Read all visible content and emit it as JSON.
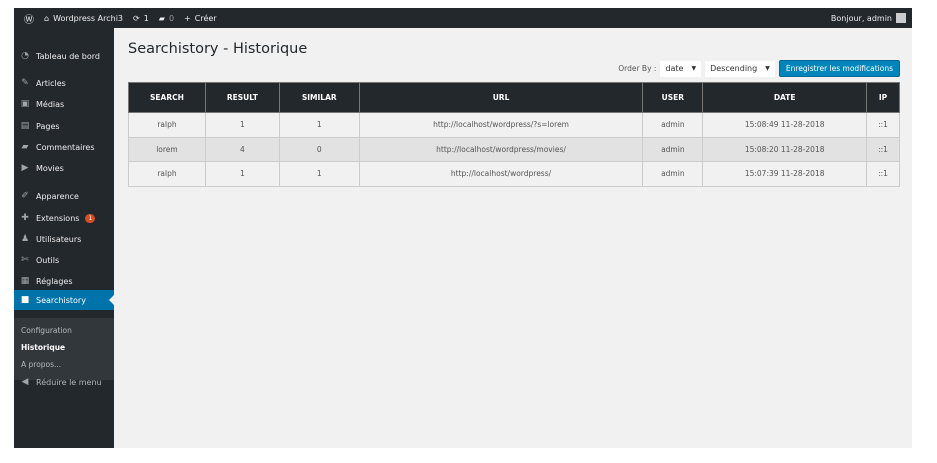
{
  "adminbar": {
    "site": "Wordpress Archi3",
    "updates": "1",
    "comments": "0",
    "new": "Créer",
    "greeting": "Bonjour, admin"
  },
  "sidebar": {
    "items": [
      {
        "label": "Tableau de bord",
        "icon": "dashboard-icon",
        "glyph": "◔"
      },
      {
        "label": "Articles",
        "icon": "pin-icon",
        "glyph": "✎"
      },
      {
        "label": "Médias",
        "icon": "media-icon",
        "glyph": "▣"
      },
      {
        "label": "Pages",
        "icon": "pages-icon",
        "glyph": "▤"
      },
      {
        "label": "Commentaires",
        "icon": "comment-icon",
        "glyph": "▰"
      },
      {
        "label": "Movies",
        "icon": "video-icon",
        "glyph": "▶"
      },
      {
        "label": "Apparence",
        "icon": "brush-icon",
        "glyph": "✐"
      },
      {
        "label": "Extensions",
        "icon": "plugin-icon",
        "glyph": "✚",
        "badge": "1"
      },
      {
        "label": "Utilisateurs",
        "icon": "users-icon",
        "glyph": "♟"
      },
      {
        "label": "Outils",
        "icon": "wrench-icon",
        "glyph": "✄"
      },
      {
        "label": "Réglages",
        "icon": "settings-icon",
        "glyph": "▦"
      },
      {
        "label": "Searchistory",
        "icon": "searchistory-icon",
        "glyph": "■"
      }
    ],
    "submenu": [
      "Configuration",
      "Historique",
      "A propos..."
    ],
    "collapse": "Réduire le menu"
  },
  "page": {
    "title": "Searchistory - Historique"
  },
  "controls": {
    "order_by_label": "Order By :",
    "order_by": "date",
    "direction": "Descending",
    "save": "Enregistrer les modifications"
  },
  "table": {
    "headers": [
      "SEARCH",
      "RESULT",
      "SIMILAR",
      "URL",
      "USER",
      "DATE",
      "IP"
    ],
    "rows": [
      [
        "ralph",
        "1",
        "1",
        "http://localhost/wordpress/?s=lorem",
        "admin",
        "15:08:49 11-28-2018",
        "::1"
      ],
      [
        "lorem",
        "4",
        "0",
        "http://localhost/wordpress/movies/",
        "admin",
        "15:08:20 11-28-2018",
        "::1"
      ],
      [
        "ralph",
        "1",
        "1",
        "http://localhost/wordpress/",
        "admin",
        "15:07:39 11-28-2018",
        "::1"
      ]
    ]
  },
  "colors": {
    "accent": "#0073aa",
    "button": "#0085ba",
    "adminbar": "#23282d"
  }
}
